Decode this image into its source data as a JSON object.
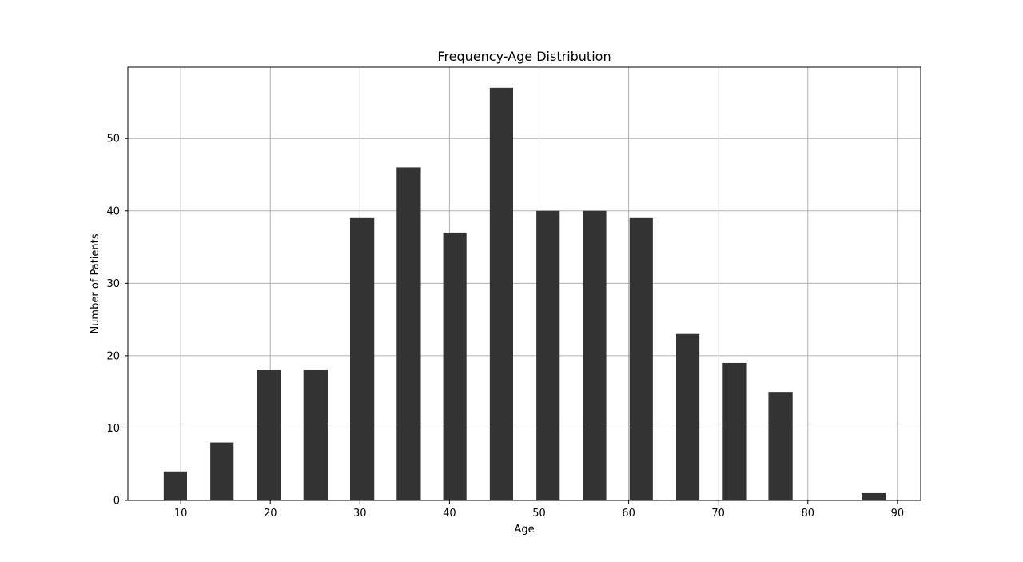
{
  "chart_data": {
    "type": "bar",
    "title": "Frequency-Age Distribution",
    "xlabel": "Age",
    "ylabel": "Number of Patients",
    "xlim": [
      4.1,
      92.6
    ],
    "ylim": [
      0,
      59.85
    ],
    "xticks": [
      10,
      20,
      30,
      40,
      50,
      60,
      70,
      80,
      90
    ],
    "yticks": [
      0,
      10,
      20,
      30,
      40,
      50
    ],
    "grid": true,
    "bar_color": "#333333",
    "bins": [
      {
        "start": 8.1,
        "end": 10.7,
        "value": 4
      },
      {
        "start": 13.3,
        "end": 15.9,
        "value": 8
      },
      {
        "start": 18.5,
        "end": 21.2,
        "value": 18
      },
      {
        "start": 23.7,
        "end": 26.4,
        "value": 18
      },
      {
        "start": 28.9,
        "end": 31.6,
        "value": 39
      },
      {
        "start": 34.1,
        "end": 36.8,
        "value": 46
      },
      {
        "start": 39.3,
        "end": 41.9,
        "value": 37
      },
      {
        "start": 44.5,
        "end": 47.1,
        "value": 57
      },
      {
        "start": 49.7,
        "end": 52.3,
        "value": 40
      },
      {
        "start": 54.9,
        "end": 57.5,
        "value": 40
      },
      {
        "start": 60.1,
        "end": 62.7,
        "value": 39
      },
      {
        "start": 65.3,
        "end": 67.9,
        "value": 23
      },
      {
        "start": 70.5,
        "end": 73.2,
        "value": 19
      },
      {
        "start": 75.6,
        "end": 78.3,
        "value": 15
      },
      {
        "start": 86.0,
        "end": 88.7,
        "value": 1
      }
    ]
  }
}
